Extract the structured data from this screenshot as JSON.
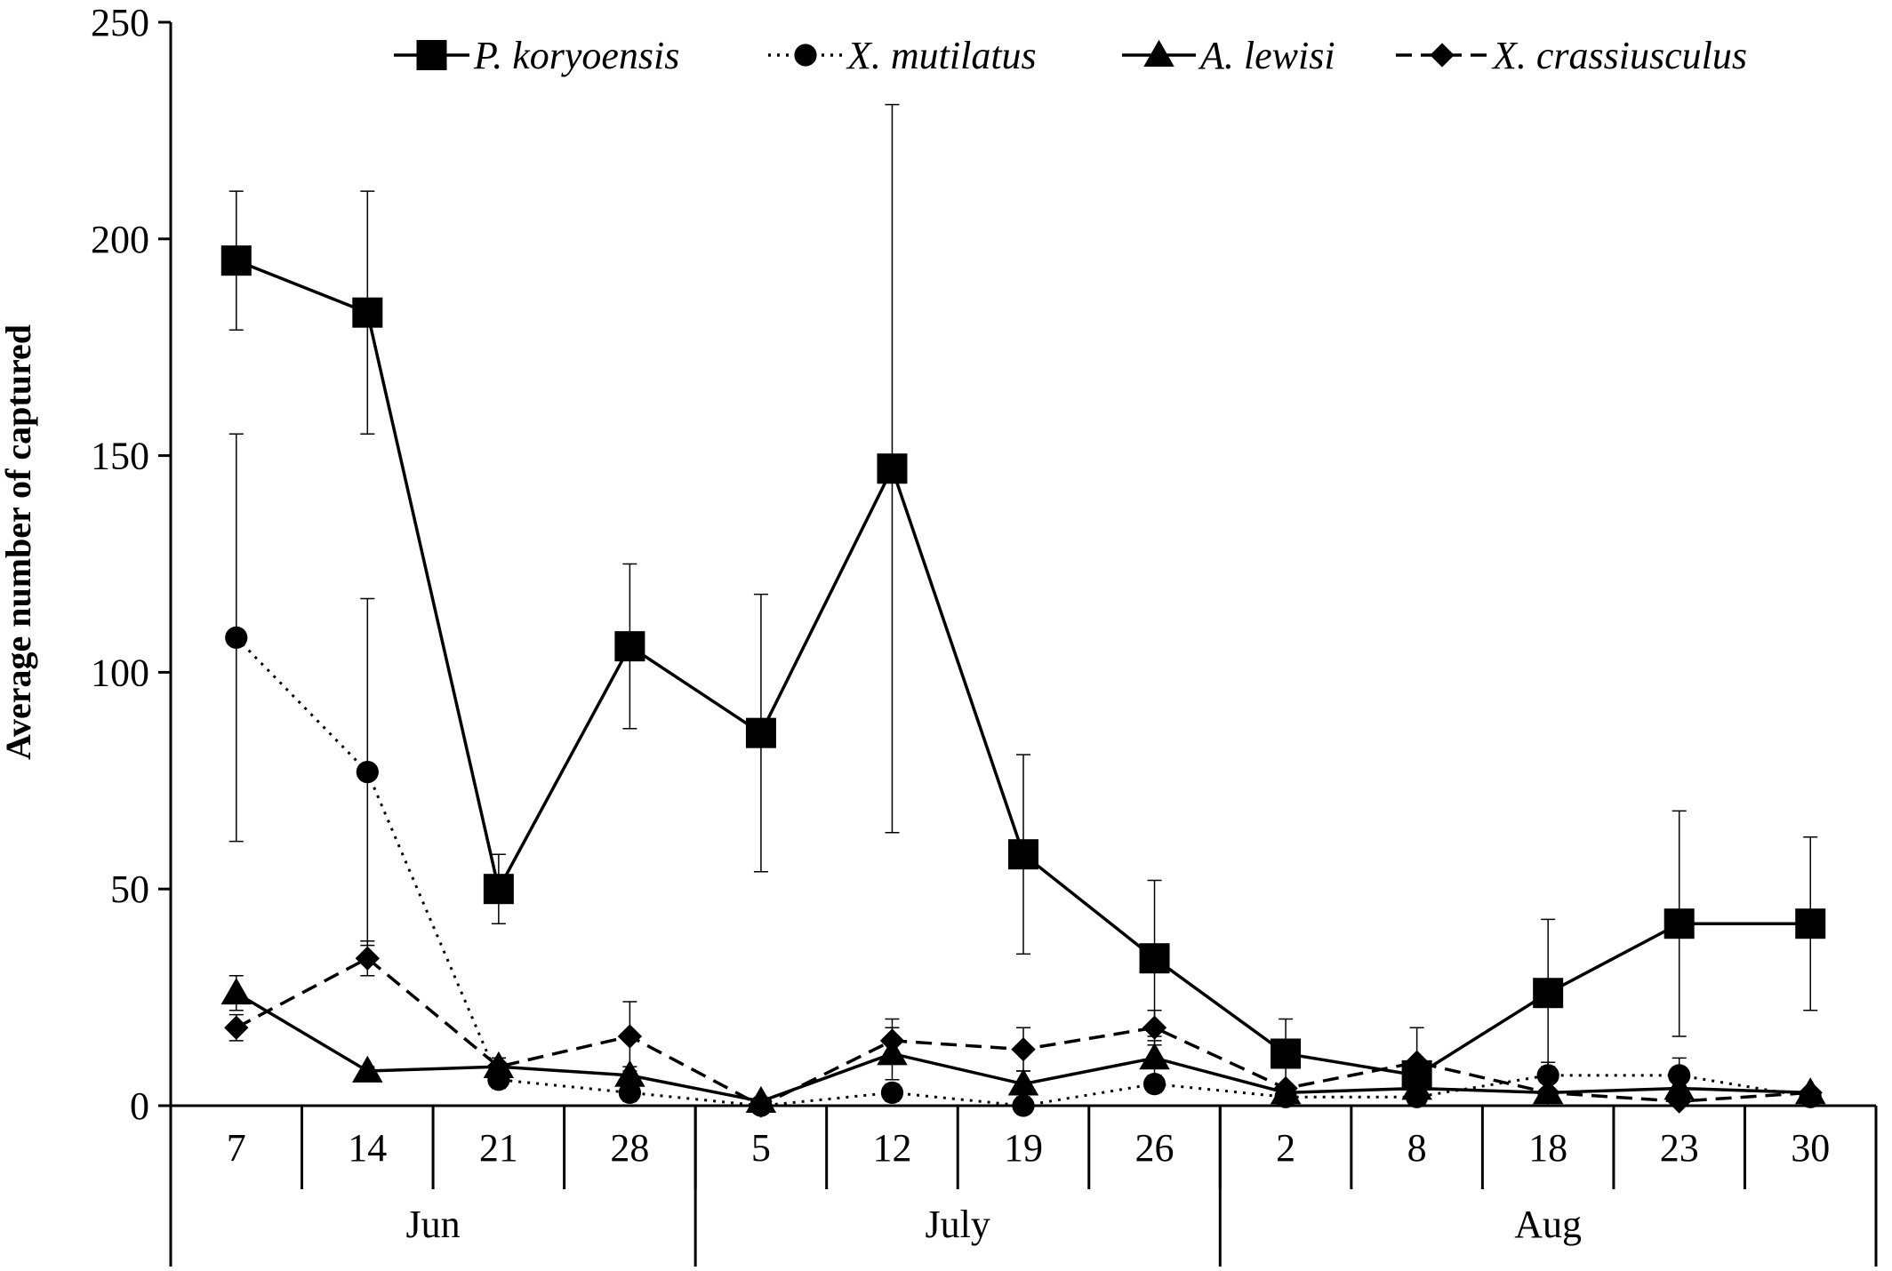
{
  "chart_data": {
    "type": "line",
    "title": "",
    "xlabel": "",
    "ylabel": "Average  number of captured",
    "ylim": [
      0,
      250
    ],
    "yticks": [
      0,
      50,
      100,
      150,
      200,
      250
    ],
    "grid": false,
    "legend_position": "top",
    "categories": [
      "7",
      "14",
      "21",
      "28",
      "5",
      "12",
      "19",
      "26",
      "2",
      "8",
      "18",
      "23",
      "30"
    ],
    "month_groups": [
      {
        "label": "Jun",
        "span": [
          0,
          3
        ]
      },
      {
        "label": "July",
        "span": [
          4,
          7
        ]
      },
      {
        "label": "Aug",
        "span": [
          8,
          12
        ]
      }
    ],
    "series": [
      {
        "name": "P. koryoensis",
        "marker": "square",
        "line": "solid",
        "values": [
          195,
          183,
          50,
          106,
          86,
          147,
          58,
          34,
          12,
          7,
          26,
          42,
          42
        ],
        "error": [
          16,
          28,
          8,
          19,
          32,
          84,
          23,
          18,
          8,
          3,
          17,
          26,
          20
        ]
      },
      {
        "name": "X. mutilatus",
        "marker": "circle",
        "line": "dotted",
        "values": [
          108,
          77,
          6,
          3,
          0,
          3,
          0,
          5,
          2,
          2,
          7,
          7,
          2
        ],
        "error": [
          47,
          40,
          2,
          2,
          0,
          2,
          0,
          2,
          1,
          1,
          3,
          4,
          1
        ]
      },
      {
        "name": "A. lewisi",
        "marker": "triangle",
        "line": "solid",
        "values": [
          26,
          8,
          9,
          7,
          1,
          12,
          5,
          11,
          3,
          4,
          3,
          4,
          3
        ],
        "error": [
          4,
          1,
          2,
          2,
          0,
          6,
          3,
          4,
          1,
          2,
          1,
          2,
          1
        ]
      },
      {
        "name": "X. crassiusculus",
        "marker": "diamond",
        "line": "dashed",
        "values": [
          18,
          34,
          9,
          16,
          0,
          15,
          13,
          18,
          4,
          10,
          3,
          1,
          3
        ],
        "error": [
          3,
          4,
          2,
          8,
          0,
          5,
          5,
          4,
          1,
          8,
          1,
          1,
          1
        ]
      }
    ]
  }
}
